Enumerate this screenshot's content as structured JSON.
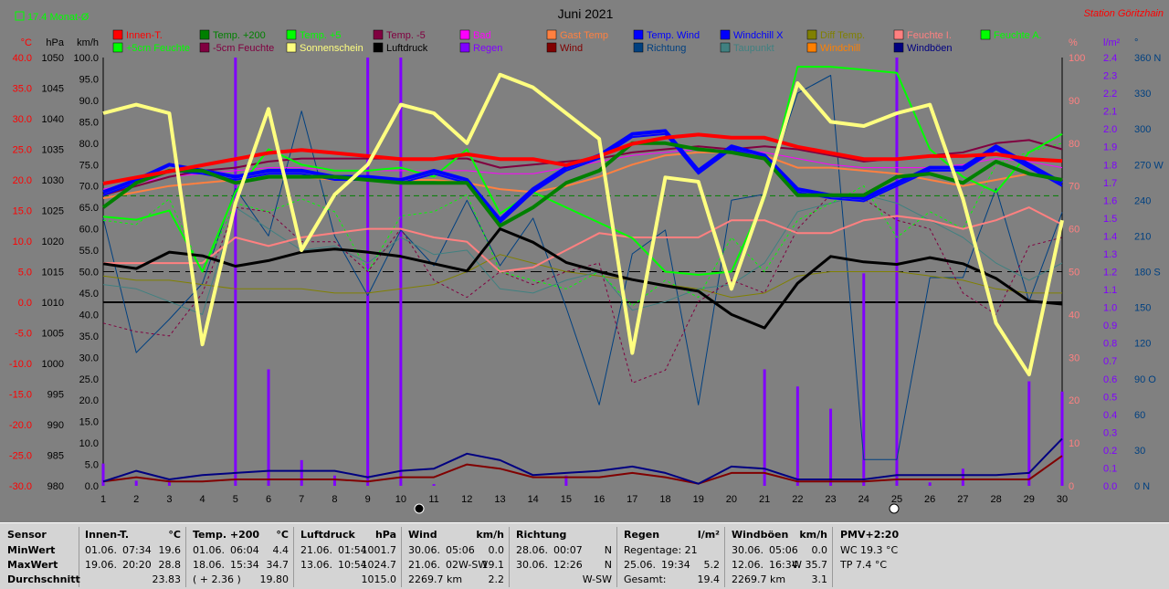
{
  "header": {
    "avg_label": "17.4 Monat-Ø",
    "month": "Juni 2021",
    "station": "Station Göritzhain"
  },
  "axes": {
    "temp": {
      "unit": "°C",
      "ticks": [
        "40.0",
        "35.0",
        "30.0",
        "25.0",
        "20.0",
        "15.0",
        "10.0",
        "5.0",
        "0.0",
        "-5.0",
        "-10.0",
        "-15.0",
        "-20.0",
        "-25.0",
        "-30.0"
      ],
      "min": -30,
      "max": 40
    },
    "pressure": {
      "unit": "hPa",
      "ticks": [
        "1050",
        "1045",
        "1040",
        "1035",
        "1030",
        "1025",
        "1020",
        "1015",
        "1010",
        "1005",
        "1000",
        "995",
        "990",
        "985",
        "980"
      ],
      "min": 980,
      "max": 1050
    },
    "speed": {
      "unit": "km/h",
      "ticks": [
        "100.0",
        "95.0",
        "90.0",
        "85.0",
        "80.0",
        "75.0",
        "70.0",
        "65.0",
        "60.0",
        "55.0",
        "50.0",
        "45.0",
        "40.0",
        "35.0",
        "30.0",
        "25.0",
        "20.0",
        "15.0",
        "10.0",
        "5.0",
        "0.0"
      ],
      "min": 0,
      "max": 100
    },
    "humidity": {
      "unit": "%",
      "ticks": [
        "100",
        "90",
        "80",
        "70",
        "60",
        "50",
        "40",
        "30",
        "20",
        "10",
        "0"
      ],
      "min": 0,
      "max": 100
    },
    "rain": {
      "unit": "l/m²",
      "ticks": [
        "2.4",
        "2.3",
        "2.2",
        "2.1",
        "2.0",
        "1.9",
        "1.8",
        "1.7",
        "1.6",
        "1.5",
        "1.4",
        "1.3",
        "1.2",
        "1.1",
        "1.0",
        "0.9",
        "0.8",
        "0.7",
        "0.6",
        "0.5",
        "0.4",
        "0.3",
        "0.2",
        "0.1",
        "0.0"
      ],
      "min": 0,
      "max": 2.5
    },
    "direction": {
      "unit": "°",
      "ticks": [
        "360 N",
        "330",
        "300",
        "270 W",
        "240",
        "210",
        "180 S",
        "150",
        "120",
        "90 O",
        "60",
        "30",
        "0 N"
      ],
      "min": 0,
      "max": 360
    },
    "days": [
      "1",
      "2",
      "3",
      "4",
      "5",
      "6",
      "7",
      "8",
      "9",
      "10",
      "11",
      "12",
      "13",
      "14",
      "15",
      "16",
      "17",
      "18",
      "19",
      "20",
      "21",
      "22",
      "23",
      "24",
      "25",
      "26",
      "27",
      "28",
      "29",
      "30"
    ]
  },
  "legend": [
    {
      "label": "Innen-T.",
      "color": "#ff0000"
    },
    {
      "label": "Temp. +200",
      "color": "#008000"
    },
    {
      "label": "Temp. +5",
      "color": "#00ff00"
    },
    {
      "label": "Temp. -5",
      "color": "#800040"
    },
    {
      "label": "Bad",
      "color": "#ff00ff"
    },
    {
      "label": "Gast Temp",
      "color": "#ff8040"
    },
    {
      "label": "Temp. Wind",
      "color": "#0000ff"
    },
    {
      "label": "Windchill X",
      "color": "#0000ff"
    },
    {
      "label": "Diff Temp.",
      "color": "#808000"
    },
    {
      "label": "Feuchte I.",
      "color": "#ff8080"
    },
    {
      "label": "Feuchte A.",
      "color": "#00ff00"
    },
    {
      "label": "+5cm Feuchte",
      "color": "#00ff00"
    },
    {
      "label": "-5cm Feuchte",
      "color": "#800040"
    },
    {
      "label": "Sonnenschein",
      "color": "#ffff80"
    },
    {
      "label": "Luftdruck",
      "color": "#000000"
    },
    {
      "label": "Regen",
      "color": "#8000ff"
    },
    {
      "label": "Wind",
      "color": "#800000"
    },
    {
      "label": "Richtung",
      "color": "#004080"
    },
    {
      "label": "Taupunkt",
      "color": "#408080"
    },
    {
      "label": "Windchill",
      "color": "#ff8000"
    },
    {
      "label": "Windböen",
      "color": "#000080"
    }
  ],
  "chart_data": {
    "type": "line",
    "x": [
      1,
      2,
      3,
      4,
      5,
      6,
      7,
      8,
      9,
      10,
      11,
      12,
      13,
      14,
      15,
      16,
      17,
      18,
      19,
      20,
      21,
      22,
      23,
      24,
      25,
      26,
      27,
      28,
      29,
      30
    ],
    "xlabel": "",
    "ylabel": "°C",
    "ylim": [
      -30,
      40
    ],
    "grid": false,
    "reference_lines": {
      "temp_avg": 17.4,
      "pressure_mean_hpa": 1015,
      "temp_zero": 0
    },
    "series": [
      {
        "name": "Innen-T.",
        "axis": "temp",
        "values": [
          19.4,
          20.4,
          21.4,
          22.4,
          23.4,
          24.4,
          24.9,
          24.4,
          23.9,
          23.4,
          23.4,
          24.2,
          23.4,
          23.4,
          22.4,
          23.9,
          25.9,
          26.9,
          27.4,
          26.9,
          26.9,
          25.4,
          24.4,
          23.4,
          23.4,
          23.9,
          23.9,
          24.2,
          23.4,
          23.1
        ]
      },
      {
        "name": "Temp. +200",
        "axis": "temp",
        "values": [
          15.5,
          19.5,
          21.5,
          21.5,
          19.5,
          20.5,
          20.5,
          20.5,
          20.0,
          19.5,
          19.5,
          19.5,
          12.5,
          15.5,
          19.5,
          21.5,
          26.0,
          26.0,
          25.0,
          24.5,
          23.5,
          17.5,
          17.5,
          17.5,
          20.5,
          21.0,
          19.5,
          23.0,
          21.0,
          20.0
        ]
      },
      {
        "name": "Temp. +5",
        "axis": "temp",
        "values": [
          14.0,
          13.5,
          15.0,
          5.0,
          18.0,
          25.0,
          22.5,
          21.5,
          21.5,
          22.0,
          20.5,
          25.0,
          14.5,
          18.0,
          15.5,
          13.0,
          10.5,
          5.0,
          4.5,
          5.0,
          17.0,
          38.5,
          38.5,
          38.0,
          37.5,
          25.0,
          20.5,
          18.0,
          24.5,
          27.5
        ]
      },
      {
        "name": "Temp. Wind",
        "axis": "temp",
        "values": [
          18.0,
          20.0,
          22.5,
          21.5,
          20.5,
          21.5,
          21.5,
          20.5,
          20.5,
          20.0,
          21.5,
          20.0,
          13.5,
          18.5,
          22.0,
          24.0,
          27.5,
          28.0,
          21.5,
          25.5,
          24.0,
          18.5,
          17.5,
          17.0,
          19.5,
          22.0,
          22.0,
          25.5,
          22.5,
          19.5
        ]
      },
      {
        "name": "Windchill X",
        "axis": "temp",
        "values": [
          17.5,
          19.5,
          21.5,
          21.0,
          20.0,
          21.0,
          21.0,
          20.0,
          20.0,
          19.5,
          21.0,
          19.5,
          13.0,
          18.0,
          21.5,
          23.5,
          27.0,
          27.5,
          21.0,
          25.0,
          23.5,
          18.0,
          17.0,
          16.5,
          19.0,
          21.5,
          21.5,
          25.0,
          22.0,
          19.0
        ]
      },
      {
        "name": "Temp. -5",
        "axis": "temp",
        "values": [
          17.5,
          19.0,
          20.5,
          21.5,
          22.0,
          23.0,
          23.5,
          23.5,
          23.5,
          23.5,
          23.5,
          23.5,
          22.0,
          22.5,
          23.0,
          23.5,
          24.5,
          25.0,
          25.5,
          25.0,
          25.5,
          25.0,
          24.0,
          23.0,
          23.5,
          24.0,
          24.5,
          26.0,
          26.5,
          25.0
        ]
      },
      {
        "name": "Gast Temp",
        "axis": "temp",
        "values": [
          17.0,
          18.0,
          19.0,
          19.5,
          20.0,
          20.5,
          20.5,
          20.0,
          20.0,
          20.0,
          20.0,
          19.5,
          18.5,
          18.0,
          19.0,
          20.5,
          22.5,
          24.0,
          24.5,
          24.5,
          24.0,
          22.0,
          22.0,
          21.5,
          21.0,
          20.0,
          19.0,
          20.0,
          21.0,
          20.0
        ]
      },
      {
        "name": "Bad",
        "axis": "temp",
        "values": [
          18.5,
          19.5,
          20.5,
          21.0,
          21.5,
          22.0,
          22.0,
          21.5,
          21.5,
          21.5,
          21.5,
          21.5,
          21.0,
          21.0,
          22.0,
          23.0,
          24.0,
          24.5,
          25.0,
          25.0,
          24.5,
          23.5,
          22.5,
          22.0,
          22.0,
          22.0,
          22.5,
          23.5,
          23.0,
          22.0
        ]
      },
      {
        "name": "Luftdruck",
        "axis": "pressure",
        "values": [
          1016.3,
          1015.5,
          1018.2,
          1017.6,
          1015.9,
          1016.8,
          1018.2,
          1018.7,
          1018.2,
          1017.5,
          1016.3,
          1015.1,
          1022.0,
          1019.8,
          1016.5,
          1015.0,
          1013.7,
          1012.7,
          1011.8,
          1008.0,
          1005.8,
          1013.1,
          1017.5,
          1016.6,
          1016.2,
          1017.3,
          1016.3,
          1013.9,
          1010.2,
          1009.7
        ]
      },
      {
        "name": "Sonnenschein",
        "axis": "speed",
        "values": [
          87.0,
          89.0,
          87.0,
          33.0,
          66.0,
          88.0,
          55.0,
          68.0,
          75.0,
          89.0,
          87.0,
          80.0,
          96.0,
          93.0,
          87.0,
          81.0,
          31.0,
          72.0,
          71.0,
          46.0,
          68.0,
          94.0,
          85.0,
          84.0,
          87.0,
          89.0,
          67.0,
          38.0,
          26.0,
          62.0
        ]
      },
      {
        "name": "Wind",
        "axis": "speed",
        "values": [
          1.0,
          2.0,
          1.0,
          1.0,
          1.5,
          1.5,
          1.5,
          1.5,
          1.0,
          2.0,
          2.0,
          5.0,
          4.0,
          2.0,
          2.0,
          2.0,
          3.0,
          2.0,
          0.5,
          3.0,
          3.0,
          1.0,
          1.0,
          1.0,
          1.5,
          1.5,
          1.5,
          1.5,
          1.5,
          7.0
        ]
      },
      {
        "name": "Windböen",
        "axis": "speed",
        "values": [
          1.0,
          3.5,
          1.5,
          2.5,
          3.0,
          3.5,
          3.5,
          3.5,
          2.0,
          3.5,
          4.0,
          7.5,
          6.0,
          2.5,
          3.0,
          3.5,
          4.5,
          3.0,
          0.5,
          4.5,
          4.0,
          1.5,
          1.5,
          1.5,
          2.5,
          2.5,
          2.5,
          2.5,
          3.0,
          11.0
        ]
      },
      {
        "name": "Feuchte I.",
        "axis": "humidity",
        "values": [
          52,
          52,
          52,
          52,
          58,
          56,
          58,
          59,
          60,
          60,
          58,
          57,
          50,
          51,
          55,
          59,
          58,
          58,
          58,
          62,
          62,
          59,
          59,
          62,
          63,
          62,
          60,
          62,
          65,
          61
        ]
      },
      {
        "name": "Feuchte A.",
        "axis": "humidity",
        "values": [
          62,
          61,
          67,
          50,
          66,
          64,
          67,
          64,
          50,
          63,
          64,
          68,
          50,
          48,
          46,
          50,
          42,
          48,
          44,
          58,
          50,
          62,
          66,
          70,
          58,
          64,
          60,
          75,
          78,
          80
        ]
      },
      {
        "name": "-5cm Feuchte",
        "axis": "humidity",
        "values": [
          38,
          36,
          35,
          45,
          65,
          64,
          57,
          57,
          50,
          60,
          48,
          44,
          50,
          47,
          50,
          52,
          24,
          27,
          43,
          48,
          45,
          60,
          68,
          67,
          62,
          60,
          45,
          40,
          56,
          58
        ]
      },
      {
        "name": "Taupunkt",
        "axis": "humidity",
        "values": [
          47,
          46,
          43,
          40,
          65,
          60,
          55,
          56,
          52,
          58,
          54,
          55,
          46,
          45,
          48,
          50,
          41,
          43,
          46,
          47,
          52,
          64,
          66,
          68,
          66,
          62,
          58,
          52,
          48,
          52
        ]
      },
      {
        "name": "Diff Temp.",
        "axis": "humidity",
        "values": [
          49,
          48,
          48,
          47,
          46,
          46,
          46,
          45,
          45,
          46,
          47,
          50,
          54,
          52,
          50,
          49,
          48,
          47,
          46,
          44,
          45,
          49,
          50,
          50,
          50,
          49,
          48,
          46,
          45,
          45
        ]
      },
      {
        "name": "Richtung",
        "axis": "direction",
        "values": [
          225,
          112,
          140,
          170,
          250,
          210,
          315,
          210,
          160,
          215,
          185,
          240,
          185,
          225,
          150,
          68,
          195,
          215,
          68,
          240,
          245,
          330,
          345,
          22,
          22,
          175,
          175,
          250,
          155,
          230
        ]
      },
      {
        "name": "Regen",
        "axis": "rain",
        "type": "bar",
        "values": [
          0.13,
          0.03,
          0.03,
          0.0,
          2.5,
          0.68,
          0.15,
          0.06,
          2.5,
          2.5,
          0.01,
          0.0,
          0.0,
          0.0,
          0.06,
          0.0,
          0.0,
          0.0,
          0.0,
          0.0,
          0.68,
          0.58,
          0.45,
          1.24,
          2.5,
          0.02,
          0.1,
          0.0,
          0.61,
          0.55
        ]
      }
    ]
  },
  "stats": {
    "row_labels": [
      "Sensor",
      "MinWert",
      "MaxWert",
      "Durchschnitt"
    ],
    "innen": {
      "title": "Innen-T.",
      "unit": "°C",
      "min_date": "01.06.",
      "min_time": "07:34",
      "min_val": "19.6",
      "max_date": "19.06.",
      "max_time": "20:20",
      "max_val": "28.8",
      "avg": "23.83"
    },
    "temp200": {
      "title": "Temp. +200",
      "unit": "°C",
      "min_date": "01.06.",
      "min_time": "06:04",
      "min_val": "4.4",
      "max_date": "18.06.",
      "max_time": "15:34",
      "max_val": "34.7",
      "avg_extra": "( + 2.36 )",
      "avg": "19.80"
    },
    "luftdruck": {
      "title": "Luftdruck",
      "unit": "hPa",
      "min_date": "21.06.",
      "min_time": "01:54",
      "min_val": "1001.7",
      "max_date": "13.06.",
      "max_time": "10:54",
      "max_val": "1024.7",
      "avg": "1015.0"
    },
    "wind": {
      "title": "Wind",
      "unit": "km/h",
      "min_date": "30.06.",
      "min_time": "05:06",
      "min_val": "0.0",
      "max_date": "21.06.",
      "max_time": "02W-SW",
      "max_val": "19.1",
      "avg_dist": "2269.7 km",
      "avg": "2.2"
    },
    "richtung": {
      "title": "Richtung",
      "min_date": "28.06.",
      "min_time": "00:07",
      "min_val": "N",
      "max_date": "30.06.",
      "max_time": "12:26",
      "max_val": "N",
      "avg": "W-SW"
    },
    "regen": {
      "title": "Regen",
      "unit": "l/m²",
      "row1": "Regentage: 21",
      "row2_date": "25.06.",
      "row2_time": "19:34",
      "row2_val": "5.2",
      "row3": "Gesamt:",
      "row3_val": "19.4"
    },
    "boeen": {
      "title": "Windböen",
      "unit": "km/h",
      "min_date": "30.06.",
      "min_time": "05:06",
      "min_val": "0.0",
      "max_date": "12.06.",
      "max_time": "16:34",
      "max_val": "W 35.7",
      "avg_dist": "2269.7 km",
      "avg": "3.1"
    },
    "pmv": {
      "title": "PMV+2:20",
      "wc": "WC 19.3 °C",
      "tp": "TP 7.4 °C"
    }
  }
}
